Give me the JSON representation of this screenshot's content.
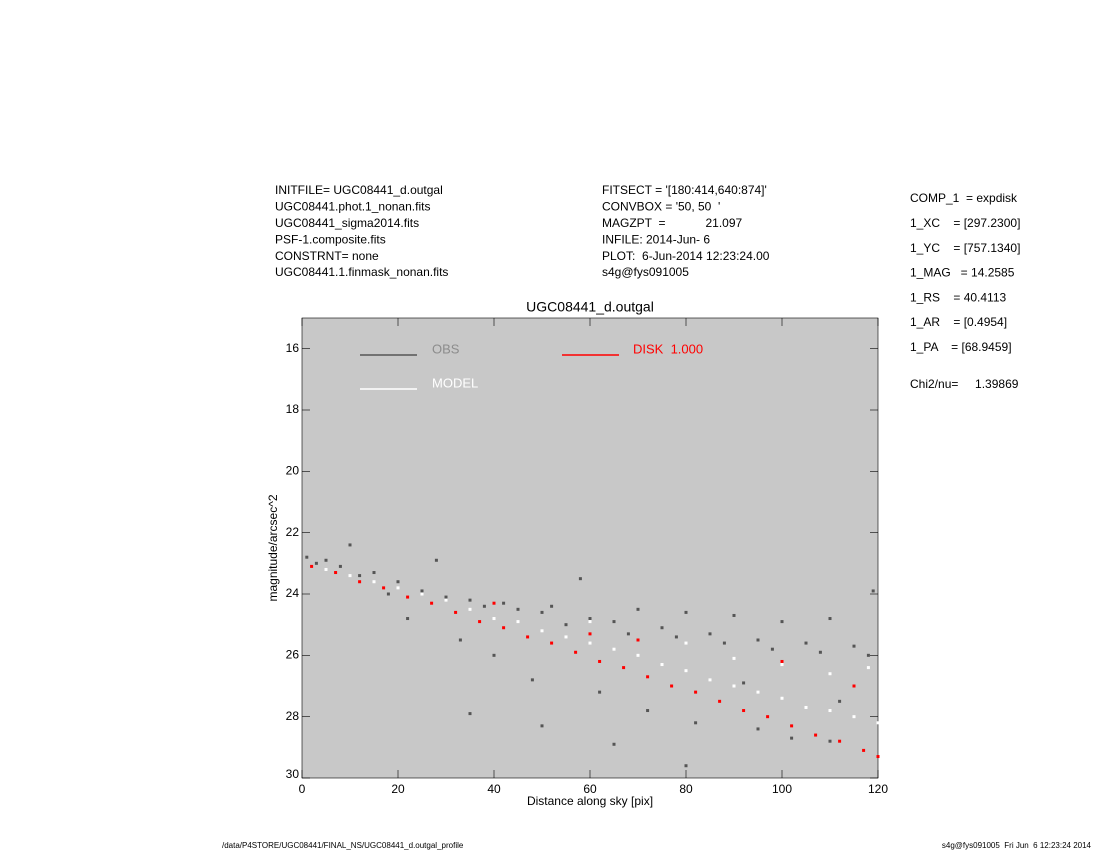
{
  "header": {
    "left": [
      "INITFILE= UGC08441_d.outgal",
      "UGC08441.phot.1_nonan.fits",
      "UGC08441_sigma2014.fits",
      "PSF-1.composite.fits",
      "CONSTRNT= none",
      "UGC08441.1.finmask_nonan.fits"
    ],
    "middle": [
      "FITSECT = '[180:414,640:874]'",
      "CONVBOX = '50, 50  '",
      "MAGZPT  =            21.097",
      "INFILE: 2014-Jun- 6",
      "PLOT:  6-Jun-2014 12:23:24.00",
      "s4g@fys091005"
    ],
    "right": [
      "COMP_1  = expdisk",
      "1_XC    = [297.2300]",
      "1_YC    = [757.1340]",
      "1_MAG   = 14.2585",
      "1_RS    = 40.4113",
      "1_AR    = [0.4954]",
      "1_PA    = [68.9459]",
      "Chi2/nu=     1.39869"
    ]
  },
  "footer": {
    "left": "/data/P4STORE/UGC08441/FINAL_NS/UGC08441_d.outgal_profile",
    "right": "s4g@fys091005  Fri Jun  6 12:23:24 2014"
  },
  "chart_data": {
    "type": "scatter",
    "title": "UGC08441_d.outgal",
    "x_label": "Distance along sky [pix]",
    "y_label": "magnitude/arcsec^2",
    "xlim": [
      0,
      120
    ],
    "ylim": [
      30,
      15
    ],
    "y_inverted": true,
    "xticks": [
      0,
      20,
      40,
      60,
      80,
      100,
      120
    ],
    "yticks": [
      16,
      18,
      20,
      22,
      24,
      26,
      28,
      30
    ],
    "background": "#c8c8c8",
    "series": [
      {
        "name": "OBS",
        "color": "#555555",
        "x": [
          1,
          3,
          5,
          8,
          10,
          12,
          15,
          18,
          20,
          22,
          25,
          28,
          30,
          33,
          35,
          38,
          40,
          42,
          45,
          48,
          50,
          52,
          55,
          58,
          60,
          62,
          65,
          68,
          70,
          72,
          75,
          78,
          80,
          82,
          85,
          88,
          90,
          92,
          95,
          98,
          100,
          102,
          105,
          108,
          110,
          112,
          115,
          118,
          119,
          35,
          50,
          65,
          80,
          95,
          110
        ],
        "values": [
          22.8,
          23.0,
          22.9,
          23.1,
          22.4,
          23.4,
          23.3,
          24.0,
          23.6,
          24.8,
          23.9,
          22.9,
          24.1,
          25.5,
          24.2,
          24.4,
          26.0,
          24.3,
          24.5,
          26.8,
          24.6,
          24.4,
          25.0,
          23.5,
          24.8,
          27.2,
          24.9,
          25.3,
          24.5,
          27.8,
          25.1,
          25.4,
          24.6,
          28.2,
          25.3,
          25.6,
          24.7,
          26.9,
          25.5,
          25.8,
          24.9,
          28.7,
          25.6,
          25.9,
          24.8,
          27.5,
          25.7,
          26.0,
          23.9,
          27.9,
          28.3,
          28.9,
          29.6,
          28.4,
          28.8
        ]
      },
      {
        "name": "MODEL",
        "color": "#ffffff",
        "x": [
          5,
          10,
          15,
          20,
          25,
          30,
          35,
          40,
          45,
          50,
          55,
          60,
          65,
          70,
          75,
          80,
          85,
          90,
          95,
          100,
          105,
          110,
          115,
          120,
          60,
          80,
          100,
          110,
          118,
          90
        ],
        "values": [
          23.2,
          23.4,
          23.6,
          23.8,
          24.0,
          24.2,
          24.5,
          24.8,
          24.9,
          25.2,
          25.4,
          25.6,
          25.8,
          26.0,
          26.3,
          26.5,
          26.8,
          27.0,
          27.2,
          27.4,
          27.7,
          27.8,
          28.0,
          28.2,
          24.9,
          25.6,
          26.3,
          26.6,
          26.4,
          26.1
        ]
      },
      {
        "name": "DISK  1.000",
        "color": "#ff0000",
        "x": [
          2,
          7,
          12,
          17,
          22,
          27,
          32,
          37,
          42,
          47,
          52,
          57,
          62,
          67,
          72,
          77,
          82,
          87,
          92,
          97,
          102,
          107,
          112,
          117,
          120,
          40,
          70,
          100,
          115,
          60
        ],
        "values": [
          23.1,
          23.3,
          23.6,
          23.8,
          24.1,
          24.3,
          24.6,
          24.9,
          25.1,
          25.4,
          25.6,
          25.9,
          26.2,
          26.4,
          26.7,
          27.0,
          27.2,
          27.5,
          27.8,
          28.0,
          28.3,
          28.6,
          28.8,
          29.1,
          29.3,
          24.3,
          25.5,
          26.2,
          27.0,
          25.3
        ]
      }
    ]
  }
}
